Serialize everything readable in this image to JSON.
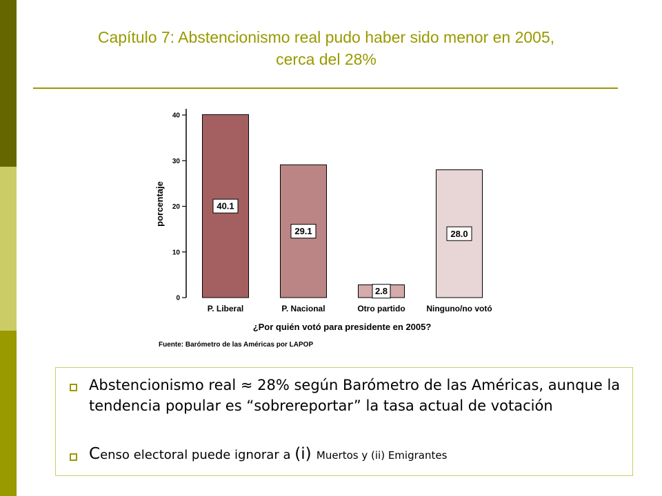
{
  "slide": {
    "title_line1": "Capítulo 7: Abstencionismo real pudo haber sido menor en 2005,",
    "title_line2": "cerca del 28%"
  },
  "colors": {
    "accent": "#999900",
    "sidebar_dark": "#666600",
    "sidebar_light": "#cccc66"
  },
  "chart_data": {
    "type": "bar",
    "categories": [
      "P. Liberal",
      "P. Nacional",
      "Otro partido",
      "Ninguno/no votó"
    ],
    "values": [
      40.1,
      29.1,
      2.8,
      28.0
    ],
    "data_labels": [
      "40.1",
      "29.1",
      "2.8",
      "28.0"
    ],
    "bar_colors": [
      "#a46060",
      "#bb8585",
      "#d4aaaa",
      "#e8d6d6"
    ],
    "xlabel": "¿Por quién votó para presidente en 2005?",
    "ylabel": "porcentaje",
    "ylim": [
      0,
      40
    ],
    "yticks": [
      "0",
      "10",
      "20",
      "30",
      "40"
    ],
    "source": "Fuente: Barómetro de las Américas por LAPOP",
    "grid": false
  },
  "bullets": [
    {
      "text": "Abstencionismo real ≈ 28% según Barómetro de las Américas, aunque la tendencia popular es “sobrereportar” la tasa actual de votación"
    },
    {
      "part1": "C",
      "part2": "enso electoral puede ignorar a ",
      "part3": "(i) ",
      "part4": "Muertos  y (ii) Emigrantes"
    }
  ]
}
